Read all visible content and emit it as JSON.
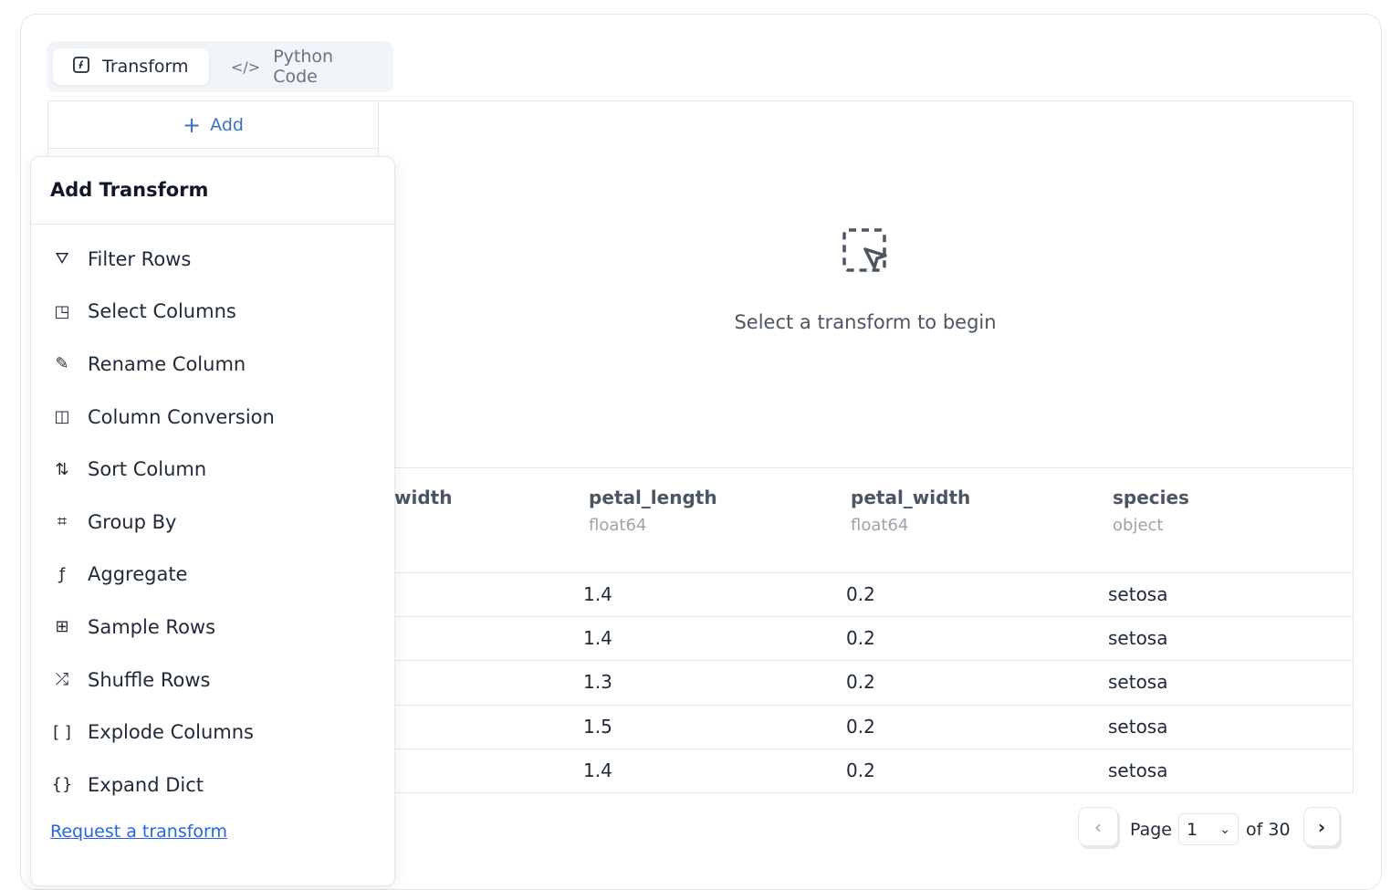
{
  "tabs": [
    {
      "label": "Transform",
      "icon": "function-icon",
      "active": true
    },
    {
      "label": "Python Code",
      "icon": "code-icon",
      "active": false
    }
  ],
  "left_panel": {
    "add_label": "Add"
  },
  "empty_state": {
    "text": "Select a transform to begin",
    "icon": "dashed-select-cursor-icon"
  },
  "table": {
    "columns": [
      {
        "name": "width",
        "dtype": ""
      },
      {
        "name": "petal_length",
        "dtype": "float64"
      },
      {
        "name": "petal_width",
        "dtype": "float64"
      },
      {
        "name": "species",
        "dtype": "object"
      }
    ],
    "rows": [
      [
        "1.4",
        "0.2",
        "setosa"
      ],
      [
        "1.4",
        "0.2",
        "setosa"
      ],
      [
        "1.3",
        "0.2",
        "setosa"
      ],
      [
        "1.5",
        "0.2",
        "setosa"
      ],
      [
        "1.4",
        "0.2",
        "setosa"
      ]
    ]
  },
  "popup": {
    "title": "Add Transform",
    "items": [
      {
        "label": "Filter Rows",
        "icon": "filter-icon"
      },
      {
        "label": "Select Columns",
        "icon": "select-columns-icon"
      },
      {
        "label": "Rename Column",
        "icon": "pencil-icon"
      },
      {
        "label": "Column Conversion",
        "icon": "columns-icon"
      },
      {
        "label": "Sort Column",
        "icon": "sort-arrows-icon"
      },
      {
        "label": "Group By",
        "icon": "group-icon"
      },
      {
        "label": "Aggregate",
        "icon": "function-icon"
      },
      {
        "label": "Sample Rows",
        "icon": "sample-icon"
      },
      {
        "label": "Shuffle Rows",
        "icon": "shuffle-icon"
      },
      {
        "label": "Explode Columns",
        "icon": "brackets-icon"
      },
      {
        "label": "Expand Dict",
        "icon": "file-braces-icon"
      }
    ],
    "link": "Request a transform"
  },
  "pagination": {
    "page_label": "Page",
    "page": "1",
    "of_label": "of 30"
  }
}
